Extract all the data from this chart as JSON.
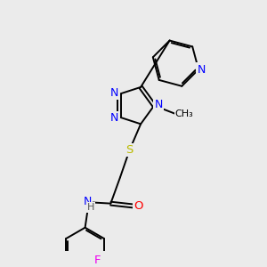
{
  "bg_color": "#ebebeb",
  "bond_color": "#000000",
  "atom_colors": {
    "N": "#0000ff",
    "O": "#ff0000",
    "S": "#bbbb00",
    "F": "#ee00ee",
    "C": "#000000",
    "H": "#555555"
  },
  "figsize": [
    3.0,
    3.0
  ],
  "dpi": 100
}
